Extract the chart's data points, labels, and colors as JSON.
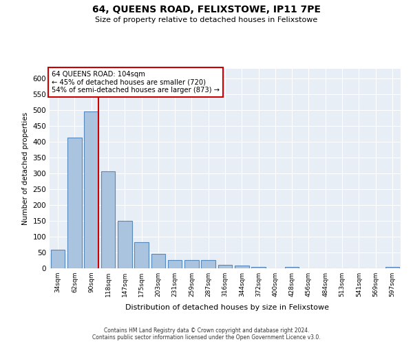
{
  "title": "64, QUEENS ROAD, FELIXSTOWE, IP11 7PE",
  "subtitle": "Size of property relative to detached houses in Felixstowe",
  "xlabel": "Distribution of detached houses by size in Felixstowe",
  "ylabel": "Number of detached properties",
  "categories": [
    "34sqm",
    "62sqm",
    "90sqm",
    "118sqm",
    "147sqm",
    "175sqm",
    "203sqm",
    "231sqm",
    "259sqm",
    "287sqm",
    "316sqm",
    "344sqm",
    "372sqm",
    "400sqm",
    "428sqm",
    "456sqm",
    "484sqm",
    "513sqm",
    "541sqm",
    "569sqm",
    "597sqm"
  ],
  "values": [
    58,
    413,
    496,
    307,
    150,
    82,
    45,
    25,
    25,
    25,
    10,
    8,
    5,
    0,
    5,
    0,
    0,
    0,
    0,
    0,
    5
  ],
  "bar_color": "#aac4e0",
  "bar_edgecolor": "#5588bb",
  "bar_linewidth": 0.8,
  "ylim": [
    0,
    630
  ],
  "yticks": [
    0,
    50,
    100,
    150,
    200,
    250,
    300,
    350,
    400,
    450,
    500,
    550,
    600
  ],
  "property_size": 104,
  "property_label": "64 QUEENS ROAD: 104sqm",
  "annotation_line1": "← 45% of detached houses are smaller (720)",
  "annotation_line2": "54% of semi-detached houses are larger (873) →",
  "vline_color": "#cc0000",
  "annotation_box_edgecolor": "#cc0000",
  "background_color": "#e8eef6",
  "footer_line1": "Contains HM Land Registry data © Crown copyright and database right 2024.",
  "footer_line2": "Contains public sector information licensed under the Open Government Licence v3.0."
}
